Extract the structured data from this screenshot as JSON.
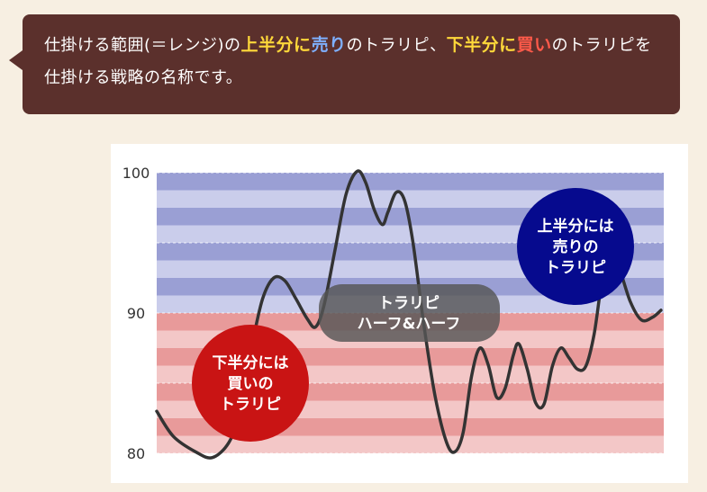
{
  "callout": {
    "t1": "仕掛ける範囲(＝レンジ)の",
    "h1": "上半分に",
    "h2": "売り",
    "t2": "のトラリピ、",
    "h3": "下半分に",
    "h4": "買い",
    "t3": "のトラリピを仕掛ける戦略の名称です。",
    "colors": {
      "text": "#ffffff",
      "yellow": "#ffd83a",
      "blue": "#7fb0ff",
      "red": "#ff5a4a",
      "background": "#5b302c"
    }
  },
  "chart_data": {
    "type": "line",
    "title": "",
    "xlabel": "",
    "ylabel": "",
    "ylim": [
      80,
      100
    ],
    "yticks": [
      "100",
      "90",
      "80"
    ],
    "grid": false,
    "band_colors": {
      "upper_dark": "#9a9fd4",
      "upper_light": "#cacdeb",
      "lower_dark": "#e89a9a",
      "lower_light": "#f3c7c7"
    },
    "line_color": "#333333",
    "series": [
      {
        "points": [
          [
            0,
            83
          ],
          [
            3,
            81.2
          ],
          [
            7,
            80.1
          ],
          [
            10,
            79.7
          ],
          [
            13,
            80.8
          ],
          [
            15,
            83
          ],
          [
            17,
            87.5
          ],
          [
            19,
            91
          ],
          [
            21,
            92.5
          ],
          [
            23,
            92.3
          ],
          [
            25,
            91
          ],
          [
            27,
            89.6
          ],
          [
            28.5,
            89
          ],
          [
            30,
            90.5
          ],
          [
            32,
            94.5
          ],
          [
            34,
            98.5
          ],
          [
            36,
            100.1
          ],
          [
            37.5,
            99.3
          ],
          [
            39,
            97.4
          ],
          [
            40.5,
            96.3
          ],
          [
            41.5,
            97.2
          ],
          [
            43,
            98.6
          ],
          [
            44.5,
            98
          ],
          [
            46,
            95
          ],
          [
            48,
            89
          ],
          [
            50,
            84
          ],
          [
            52,
            80.8
          ],
          [
            53.5,
            80.1
          ],
          [
            55,
            81.5
          ],
          [
            56.5,
            85.5
          ],
          [
            58,
            87.5
          ],
          [
            59.5,
            86.3
          ],
          [
            61,
            84
          ],
          [
            62.5,
            84.6
          ],
          [
            64,
            87
          ],
          [
            65,
            87.8
          ],
          [
            66.5,
            86
          ],
          [
            68,
            83.6
          ],
          [
            69.5,
            83.5
          ],
          [
            71,
            86.2
          ],
          [
            72.5,
            87.5
          ],
          [
            74,
            86.8
          ],
          [
            75.5,
            86
          ],
          [
            77,
            86.2
          ],
          [
            78.5,
            88.5
          ],
          [
            80,
            92.5
          ],
          [
            81.5,
            94.2
          ],
          [
            83,
            93.2
          ],
          [
            85,
            90.8
          ],
          [
            87,
            89.5
          ],
          [
            89,
            89.7
          ],
          [
            90.5,
            90.2
          ]
        ]
      }
    ],
    "labels": {
      "buy": [
        "下半分には",
        "買いの",
        "トラリピ"
      ],
      "center": [
        "トラリピ",
        "ハーフ&ハーフ"
      ],
      "sell": [
        "上半分には",
        "売りの",
        "トラリピ"
      ]
    },
    "label_colors": {
      "buy": "#c91414",
      "sell": "#060a8e",
      "center": "#555555"
    }
  }
}
